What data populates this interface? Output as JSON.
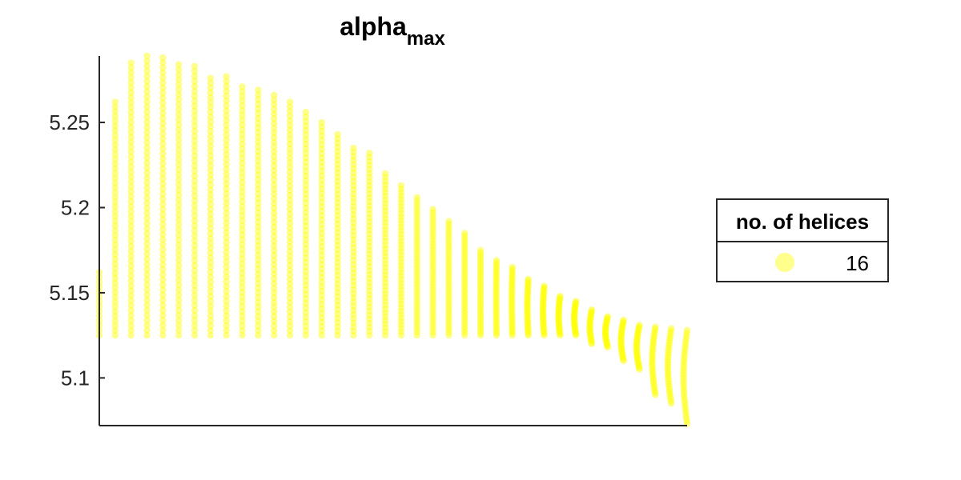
{
  "chart_data": {
    "type": "scatter",
    "title_main": "alpha",
    "title_sub": "max",
    "xlabel": "",
    "ylabel": "",
    "x_ticks_shown": false,
    "ylim": [
      5.072,
      5.289
    ],
    "y_ticks": [
      {
        "value": 5.1,
        "label": "5.1"
      },
      {
        "value": 5.15,
        "label": "5.15"
      },
      {
        "value": 5.2,
        "label": "5.2"
      },
      {
        "value": 5.25,
        "label": "5.25"
      }
    ],
    "grid": false,
    "box": "left-bottom",
    "marker_color": "#ffff00",
    "marker_alpha": 0.45,
    "legend": {
      "title": "no. of helices",
      "placement": "outside-right",
      "entries": [
        {
          "label": "16",
          "color": "#ffff00"
        }
      ]
    },
    "series_description": "One column of points per x value; each column rises from a common base of about 5.125 up to a maximum value. Points are dense near the bottom of the later columns.",
    "columns": [
      {
        "x": 0,
        "y_min": 5.125,
        "y_max": 5.162,
        "n": 14
      },
      {
        "x": 1,
        "y_min": 5.125,
        "y_max": 5.262,
        "n": 50
      },
      {
        "x": 2,
        "y_min": 5.125,
        "y_max": 5.285,
        "n": 56
      },
      {
        "x": 3,
        "y_min": 5.125,
        "y_max": 5.289,
        "n": 56
      },
      {
        "x": 4,
        "y_min": 5.125,
        "y_max": 5.288,
        "n": 56
      },
      {
        "x": 5,
        "y_min": 5.125,
        "y_max": 5.284,
        "n": 55
      },
      {
        "x": 6,
        "y_min": 5.125,
        "y_max": 5.283,
        "n": 55
      },
      {
        "x": 7,
        "y_min": 5.125,
        "y_max": 5.276,
        "n": 54
      },
      {
        "x": 8,
        "y_min": 5.125,
        "y_max": 5.277,
        "n": 54
      },
      {
        "x": 9,
        "y_min": 5.125,
        "y_max": 5.271,
        "n": 53
      },
      {
        "x": 10,
        "y_min": 5.125,
        "y_max": 5.269,
        "n": 53
      },
      {
        "x": 11,
        "y_min": 5.125,
        "y_max": 5.266,
        "n": 52
      },
      {
        "x": 12,
        "y_min": 5.125,
        "y_max": 5.262,
        "n": 51
      },
      {
        "x": 13,
        "y_min": 5.125,
        "y_max": 5.256,
        "n": 50
      },
      {
        "x": 14,
        "y_min": 5.125,
        "y_max": 5.25,
        "n": 49
      },
      {
        "x": 15,
        "y_min": 5.125,
        "y_max": 5.243,
        "n": 48
      },
      {
        "x": 16,
        "y_min": 5.125,
        "y_max": 5.235,
        "n": 46
      },
      {
        "x": 17,
        "y_min": 5.125,
        "y_max": 5.232,
        "n": 46
      },
      {
        "x": 18,
        "y_min": 5.125,
        "y_max": 5.22,
        "n": 44
      },
      {
        "x": 19,
        "y_min": 5.125,
        "y_max": 5.213,
        "n": 44
      },
      {
        "x": 20,
        "y_min": 5.125,
        "y_max": 5.206,
        "n": 44
      },
      {
        "x": 21,
        "y_min": 5.125,
        "y_max": 5.199,
        "n": 42
      },
      {
        "x": 22,
        "y_min": 5.125,
        "y_max": 5.192,
        "n": 40
      },
      {
        "x": 23,
        "y_min": 5.125,
        "y_max": 5.185,
        "n": 38
      },
      {
        "x": 24,
        "y_min": 5.125,
        "y_max": 5.175,
        "n": 36
      },
      {
        "x": 25,
        "y_min": 5.125,
        "y_max": 5.169,
        "n": 34
      },
      {
        "x": 26,
        "y_min": 5.125,
        "y_max": 5.165,
        "n": 34
      },
      {
        "x": 27,
        "y_min": 5.125,
        "y_max": 5.158,
        "n": 34
      },
      {
        "x": 28,
        "y_min": 5.125,
        "y_max": 5.154,
        "n": 32
      },
      {
        "x": 29,
        "y_min": 5.125,
        "y_max": 5.148,
        "n": 30
      },
      {
        "x": 30,
        "y_min": 5.125,
        "y_max": 5.145,
        "n": 28
      },
      {
        "x": 31,
        "y_min": 5.12,
        "y_max": 5.14,
        "n": 26
      },
      {
        "x": 32,
        "y_min": 5.118,
        "y_max": 5.136,
        "n": 26
      },
      {
        "x": 33,
        "y_min": 5.11,
        "y_max": 5.134,
        "n": 28
      },
      {
        "x": 34,
        "y_min": 5.105,
        "y_max": 5.131,
        "n": 30
      },
      {
        "x": 35,
        "y_min": 5.09,
        "y_max": 5.13,
        "n": 32
      },
      {
        "x": 36,
        "y_min": 5.085,
        "y_max": 5.129,
        "n": 32
      },
      {
        "x": 37,
        "y_min": 5.073,
        "y_max": 5.128,
        "n": 34
      }
    ]
  }
}
